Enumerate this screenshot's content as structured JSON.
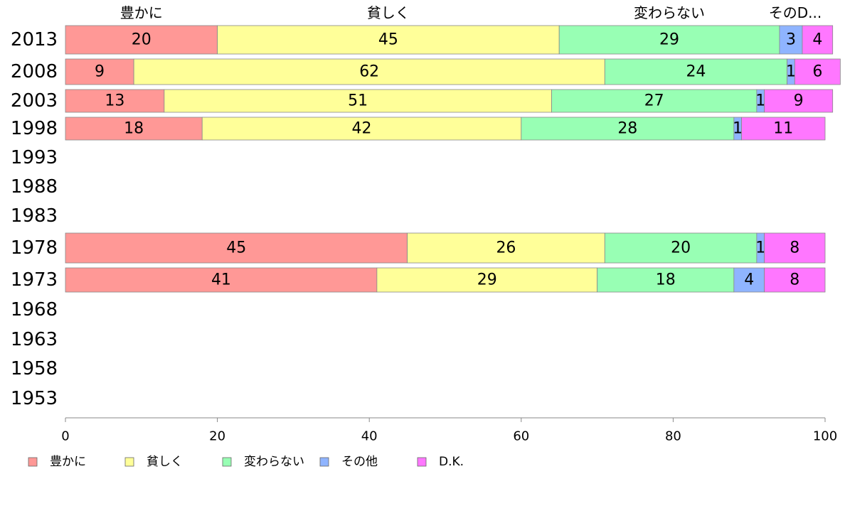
{
  "chart_data": {
    "type": "bar",
    "orientation": "horizontal",
    "stacked": true,
    "categories": [
      "2013",
      "2008",
      "2003",
      "1998",
      "1993",
      "1988",
      "1983",
      "1978",
      "1973",
      "1968",
      "1963",
      "1958",
      "1953"
    ],
    "series": [
      {
        "name": "豊かに",
        "color": "#ff9896",
        "values": [
          20,
          9,
          13,
          18,
          null,
          null,
          null,
          45,
          41,
          null,
          null,
          null,
          null
        ]
      },
      {
        "name": "貧しく",
        "color": "#ffff99",
        "values": [
          45,
          62,
          51,
          42,
          null,
          null,
          null,
          26,
          29,
          null,
          null,
          null,
          null
        ]
      },
      {
        "name": "変わらない",
        "color": "#98ffb4",
        "values": [
          29,
          24,
          27,
          28,
          null,
          null,
          null,
          20,
          18,
          null,
          null,
          null,
          null
        ]
      },
      {
        "name": "その他",
        "color": "#8fb4ff",
        "values": [
          3,
          1,
          1,
          1,
          null,
          null,
          null,
          1,
          4,
          null,
          null,
          null,
          null
        ]
      },
      {
        "name": "D.K.",
        "color": "#ff77ff",
        "values": [
          4,
          6,
          9,
          11,
          null,
          null,
          null,
          8,
          8,
          null,
          null,
          null,
          null
        ]
      }
    ],
    "top_labels": [
      "豊かに",
      "貧しく",
      "変わらない",
      "そのD..."
    ],
    "xlim": [
      0,
      100
    ],
    "xticks": [
      "0",
      "20",
      "40",
      "60",
      "80",
      "100"
    ],
    "legend_position": "bottom-left",
    "grid": false
  }
}
